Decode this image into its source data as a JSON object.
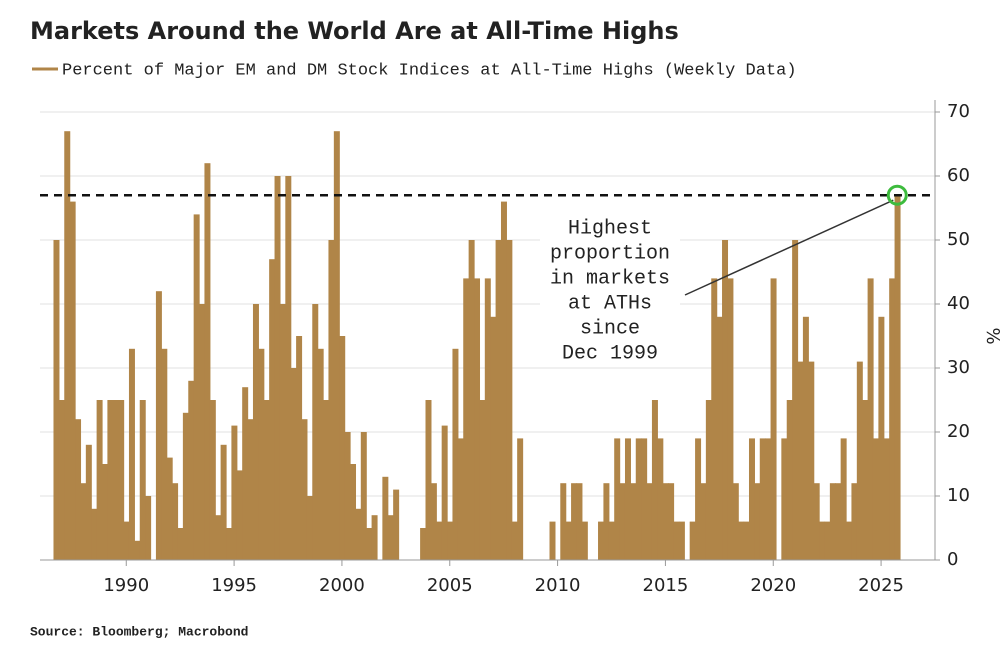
{
  "chart_data": {
    "type": "bar",
    "title": "Markets Around the World Are at All-Time Highs",
    "series": [
      {
        "name": "Percent of Major EM and DM Stock Indices at All-Time Highs (Weekly Data)",
        "color": "#b08548",
        "values": [
          50,
          25,
          67,
          56,
          22,
          12,
          18,
          8,
          25,
          15,
          25,
          25,
          25,
          6,
          33,
          3,
          25,
          10,
          0,
          42,
          33,
          16,
          12,
          5,
          23,
          28,
          54,
          40,
          62,
          25,
          7,
          18,
          5,
          21,
          14,
          27,
          22,
          40,
          33,
          25,
          47,
          60,
          40,
          60,
          30,
          35,
          22,
          10,
          40,
          33,
          25,
          50,
          67,
          35,
          20,
          15,
          8,
          20,
          5,
          7,
          0,
          13,
          7,
          11,
          0,
          0,
          0,
          0,
          5,
          25,
          12,
          6,
          21,
          6,
          33,
          19,
          44,
          50,
          44,
          25,
          44,
          38,
          50,
          56,
          50,
          6,
          19,
          0,
          0,
          0,
          0,
          0,
          6,
          0,
          12,
          6,
          12,
          12,
          6,
          0,
          0,
          6,
          12,
          6,
          19,
          12,
          19,
          12,
          19,
          19,
          12,
          25,
          19,
          12,
          12,
          6,
          6,
          0,
          6,
          19,
          12,
          25,
          44,
          38,
          50,
          44,
          12,
          6,
          6,
          19,
          12,
          19,
          19,
          44,
          0,
          19,
          25,
          50,
          31,
          38,
          31,
          12,
          6,
          6,
          12,
          12,
          19,
          6,
          12,
          31,
          25,
          44,
          19,
          38,
          19,
          44,
          57
        ]
      }
    ],
    "x": [
      1986.75,
      1987,
      1987.25,
      1987.5,
      1987.75,
      1988,
      1988.25,
      1988.5,
      1988.75,
      1989,
      1989.25,
      1989.5,
      1989.75,
      1990,
      1990.25,
      1990.5,
      1990.75,
      1991,
      1991.25,
      1991.5,
      1991.75,
      1992,
      1992.25,
      1992.5,
      1992.75,
      1993,
      1993.25,
      1993.5,
      1993.75,
      1994,
      1994.25,
      1994.5,
      1994.75,
      1995,
      1995.25,
      1995.5,
      1995.75,
      1996,
      1996.25,
      1996.5,
      1996.75,
      1997,
      1997.25,
      1997.5,
      1997.75,
      1998,
      1998.25,
      1998.5,
      1998.75,
      1999,
      1999.25,
      1999.5,
      1999.75,
      2000,
      2000.25,
      2000.5,
      2000.75,
      2001,
      2001.25,
      2001.5,
      2001.75,
      2002,
      2002.25,
      2002.5,
      2002.75,
      2003,
      2003.25,
      2003.5,
      2003.75,
      2004,
      2004.25,
      2004.5,
      2004.75,
      2005,
      2005.25,
      2005.5,
      2005.75,
      2006,
      2006.25,
      2006.5,
      2006.75,
      2007,
      2007.25,
      2007.5,
      2007.75,
      2008,
      2008.25,
      2008.5,
      2008.75,
      2009,
      2009.25,
      2009.5,
      2009.75,
      2010,
      2010.25,
      2010.5,
      2010.75,
      2011,
      2011.25,
      2011.5,
      2011.75,
      2012,
      2012.25,
      2012.5,
      2012.75,
      2013,
      2013.25,
      2013.5,
      2013.75,
      2014,
      2014.25,
      2014.5,
      2014.75,
      2015,
      2015.25,
      2015.5,
      2015.75,
      2016,
      2016.25,
      2016.5,
      2016.75,
      2017,
      2017.25,
      2017.5,
      2017.75,
      2018,
      2018.25,
      2018.5,
      2018.75,
      2019,
      2019.25,
      2019.5,
      2019.75,
      2020,
      2020.25,
      2020.5,
      2020.75,
      2021,
      2021.25,
      2021.5,
      2021.75,
      2022,
      2022.25,
      2022.5,
      2022.75,
      2023,
      2023.25,
      2023.5,
      2023.75,
      2024,
      2024.25,
      2024.5,
      2024.75,
      2025,
      2025.25,
      2025.5,
      2025.75
    ],
    "xlim": [
      1986,
      2027.5
    ],
    "xticks": [
      1990,
      1995,
      2000,
      2005,
      2010,
      2015,
      2020,
      2025
    ],
    "ylim": [
      0,
      70
    ],
    "yticks": [
      0,
      10,
      20,
      30,
      40,
      50,
      60,
      70
    ],
    "ylabel": "%",
    "grid": true,
    "reference_line": 57,
    "annotation": {
      "lines": [
        "Highest",
        "proportion",
        "in markets",
        "at ATHs",
        "since",
        "Dec 1999"
      ],
      "point": {
        "x": 2025.75,
        "y": 57
      },
      "color": "#3dbb3d"
    },
    "source": "Source: Bloomberg; Macrobond"
  }
}
